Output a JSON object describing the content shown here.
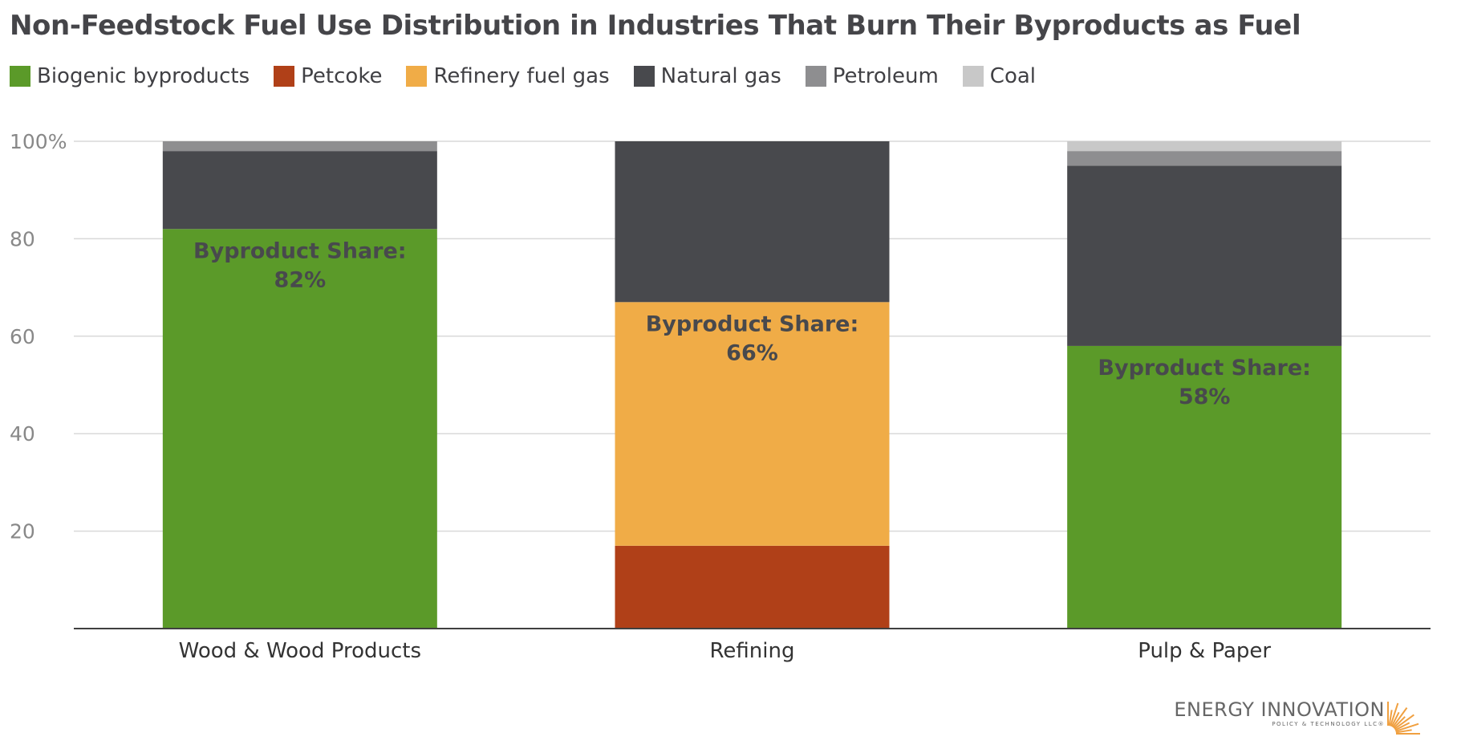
{
  "chart_data": {
    "type": "bar",
    "stacked": true,
    "title": "Non-Feedstock Fuel Use Distribution in Industries That Burn Their Byproducts as Fuel",
    "categories": [
      "Wood & Wood Products",
      "Refining",
      "Pulp & Paper"
    ],
    "series": [
      {
        "name": "Biogenic byproducts",
        "color": "#5b9a29",
        "values": [
          82,
          0,
          58
        ]
      },
      {
        "name": "Petcoke",
        "color": "#b04018",
        "values": [
          0,
          17,
          0
        ]
      },
      {
        "name": "Refinery fuel gas",
        "color": "#f0ac47",
        "values": [
          0,
          50,
          0
        ]
      },
      {
        "name": "Natural gas",
        "color": "#48494d",
        "values": [
          16,
          33,
          37
        ]
      },
      {
        "name": "Petroleum",
        "color": "#8e8e90",
        "values": [
          2,
          0,
          3
        ]
      },
      {
        "name": "Coal",
        "color": "#c8c8c8",
        "values": [
          0,
          0,
          2
        ]
      }
    ],
    "annotations": [
      {
        "category": "Wood & Wood Products",
        "label": "Byproduct Share:",
        "value": "82%",
        "anchor": 82
      },
      {
        "category": "Refining",
        "label": "Byproduct Share:",
        "value": "66%",
        "anchor": 67
      },
      {
        "category": "Pulp & Paper",
        "label": "Byproduct Share:",
        "value": "58%",
        "anchor": 58
      }
    ],
    "ylim": [
      0,
      100
    ],
    "yticks": [
      20,
      40,
      60,
      80,
      100
    ],
    "ytick_labels": [
      "20",
      "40",
      "60",
      "80",
      "100%"
    ],
    "xlabel": "",
    "ylabel": "",
    "grid": true,
    "legend_position": "top-left"
  },
  "logo": {
    "name": "ENERGY INNOVATION",
    "tagline": "POLICY & TECHNOLOGY LLC®"
  },
  "colors": {
    "title": "#454549",
    "annotation_text": "#48494d",
    "grid": "#d9d9d9",
    "axis": "#404040",
    "logo_sun": "#f0a040"
  }
}
